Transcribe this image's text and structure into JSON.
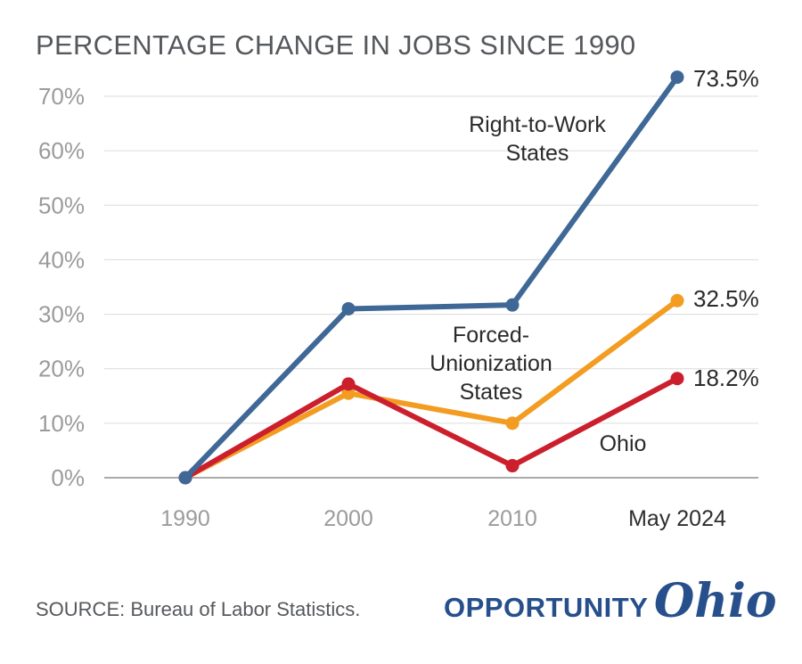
{
  "title": "PERCENTAGE CHANGE IN JOBS SINCE 1990",
  "source": "SOURCE: Bureau of Labor Statistics.",
  "logo": {
    "word": "OPPORTUNITY",
    "script": "Ohio"
  },
  "chart_data": {
    "type": "line",
    "title": "PERCENTAGE CHANGE IN JOBS SINCE 1990",
    "x": [
      "1990",
      "2000",
      "2010",
      "May 2024"
    ],
    "ylim": [
      0,
      70
    ],
    "yticks": [
      "0%",
      "10%",
      "20%",
      "30%",
      "40%",
      "50%",
      "60%",
      "70%"
    ],
    "grid": true,
    "series": [
      {
        "name": "Right-to-Work States",
        "label_lines": [
          "Right-to-Work",
          "States"
        ],
        "values": [
          0,
          31,
          31.7,
          73.5
        ],
        "end_label": "73.5%",
        "color": "#3f6897"
      },
      {
        "name": "Forced-Unionization States",
        "label_lines": [
          "Forced-",
          "Unionization",
          "States"
        ],
        "values": [
          0,
          15.5,
          10,
          32.5
        ],
        "end_label": "32.5%",
        "color": "#f39c22"
      },
      {
        "name": "Ohio",
        "label_lines": [
          "Ohio"
        ],
        "values": [
          0,
          17.2,
          2.2,
          18.2
        ],
        "end_label": "18.2%",
        "color": "#cc1f2d"
      }
    ]
  }
}
